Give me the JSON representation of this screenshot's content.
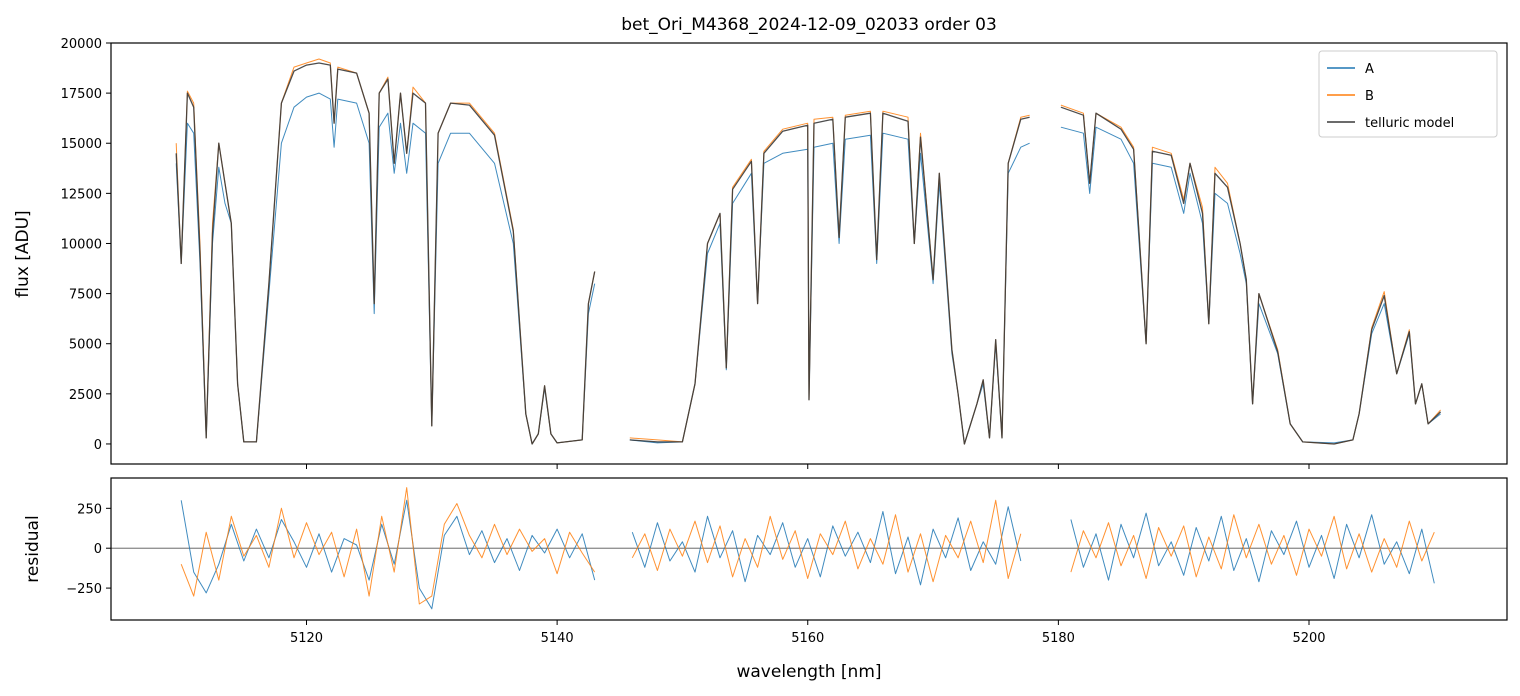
{
  "chart_data": [
    {
      "type": "line",
      "title": "bet_Ori_M4368_2024-12-09_02033  order 03",
      "ylabel": "flux [ADU]",
      "legend": "upper right",
      "ylim": [
        -1000,
        20000
      ],
      "yticks": [
        0,
        2500,
        5000,
        7500,
        10000,
        12500,
        15000,
        17500,
        20000
      ],
      "x": [
        5109.6,
        5110.0,
        5110.5,
        5111.0,
        5111.5,
        5112.0,
        5112.5,
        5113.0,
        5113.5,
        5114.0,
        5114.5,
        5115.0,
        5116.0,
        5117.0,
        5118.0,
        5119.0,
        5120.0,
        5121.0,
        5121.9,
        5122.2,
        5122.5,
        5124.0,
        5125.0,
        5125.4,
        5125.8,
        5126.5,
        5127.0,
        5127.5,
        5128.0,
        5128.5,
        5129.5,
        5130.0,
        5130.5,
        5131.5,
        5133.0,
        5135.0,
        5136.5,
        5137.5,
        5138.0,
        5138.5,
        5139.0,
        5139.5,
        5140.0,
        5142.0,
        5142.5,
        5143.0,
        5144.5,
        5145.8,
        5148.0,
        5150.0,
        5151.0,
        5152.0,
        5153.0,
        5153.5,
        5154.0,
        5155.5,
        5156.0,
        5156.5,
        5158.0,
        5160.0,
        5160.1,
        5160.5,
        5162.0,
        5162.5,
        5163.0,
        5165.0,
        5165.5,
        5166.0,
        5168.0,
        5168.5,
        5169.0,
        5170.0,
        5170.5,
        5171.5,
        5172.0,
        5172.5,
        5173.5,
        5174.0,
        5174.5,
        5175.0,
        5175.5,
        5176.0,
        5177.0,
        5177.7,
        5179.0,
        5180.2,
        5182.0,
        5182.5,
        5183.0,
        5185.0,
        5186.0,
        5187.0,
        5187.5,
        5189.0,
        5190.0,
        5190.5,
        5191.5,
        5192.0,
        5192.5,
        5193.5,
        5194.5,
        5195.0,
        5195.5,
        5196.0,
        5197.5,
        5198.5,
        5199.5,
        5202.0,
        5203.5,
        5204.0,
        5205.0,
        5206.0,
        5207.0,
        5208.0,
        5208.5,
        5209.0,
        5209.5,
        5210.5
      ],
      "series": [
        {
          "name": "A",
          "color": "#1f77b4",
          "values": [
            14000,
            9000,
            16000,
            15500,
            9000,
            300,
            10000,
            13800,
            12000,
            11000,
            3000,
            100,
            100,
            7500,
            15000,
            16800,
            17300,
            17500,
            17200,
            14800,
            17200,
            17000,
            15000,
            6500,
            15800,
            16500,
            13500,
            16000,
            13500,
            16000,
            15500,
            900,
            14000,
            15500,
            15500,
            14000,
            10000,
            1500,
            0,
            500,
            2800,
            500,
            50,
            200,
            6500,
            8000,
            null,
            200,
            50,
            100,
            3000,
            9500,
            11000,
            3700,
            12000,
            13500,
            7000,
            14000,
            14500,
            14700,
            2200,
            14800,
            15000,
            10000,
            15200,
            15400,
            9000,
            15500,
            15200,
            10000,
            14500,
            8000,
            13000,
            4500,
            2500,
            0,
            2000,
            3000,
            300,
            5000,
            300,
            13500,
            14800,
            15000,
            null,
            15800,
            15500,
            12500,
            15800,
            15200,
            14000,
            5000,
            14000,
            13800,
            11500,
            13500,
            11000,
            6000,
            12500,
            12000,
            9500,
            8000,
            2000,
            7000,
            4500,
            1000,
            100,
            50,
            200,
            1500,
            5500,
            7000,
            3500,
            5500,
            2000,
            3000,
            1000,
            1500
          ]
        },
        {
          "name": "B",
          "color": "#ff7f0e",
          "values": [
            15000,
            9000,
            17600,
            17000,
            10000,
            300,
            11000,
            15000,
            13000,
            11000,
            3000,
            100,
            100,
            8000,
            17000,
            18800,
            19000,
            19200,
            19000,
            16000,
            18800,
            18500,
            16500,
            7000,
            17500,
            18300,
            14000,
            17500,
            14500,
            17800,
            17000,
            900,
            15500,
            17000,
            17000,
            15500,
            10700,
            1500,
            0,
            500,
            2900,
            500,
            50,
            200,
            7000,
            8600,
            null,
            300,
            200,
            100,
            3000,
            10000,
            11500,
            3800,
            12800,
            14200,
            7000,
            14600,
            15700,
            16000,
            2200,
            16200,
            16300,
            10300,
            16400,
            16600,
            9200,
            16600,
            16300,
            10000,
            15500,
            8200,
            13500,
            4700,
            2500,
            0,
            2000,
            3200,
            300,
            5200,
            300,
            14000,
            16300,
            16400,
            null,
            16900,
            16500,
            13000,
            16500,
            15800,
            14800,
            5000,
            14800,
            14500,
            12200,
            14000,
            11800,
            6000,
            13800,
            13000,
            10000,
            8200,
            2000,
            7500,
            4700,
            1000,
            100,
            0,
            200,
            1500,
            5800,
            7600,
            3500,
            5700,
            2000,
            3000,
            1000,
            1700
          ]
        },
        {
          "name": "telluric model",
          "color": "#3a3a3a",
          "values": [
            14500,
            9000,
            17500,
            16800,
            9500,
            300,
            10500,
            15000,
            13000,
            11000,
            3000,
            100,
            100,
            8000,
            17000,
            18600,
            18900,
            19000,
            18900,
            16000,
            18700,
            18500,
            16500,
            7000,
            17500,
            18200,
            14000,
            17500,
            14500,
            17500,
            17000,
            900,
            15500,
            17000,
            16900,
            15400,
            10600,
            1500,
            0,
            500,
            2900,
            500,
            50,
            200,
            7000,
            8600,
            null,
            200,
            100,
            100,
            3000,
            10000,
            11500,
            3800,
            12700,
            14100,
            7000,
            14500,
            15600,
            15900,
            2200,
            16000,
            16200,
            10300,
            16300,
            16500,
            9200,
            16500,
            16100,
            10000,
            15300,
            8200,
            13500,
            4700,
            2500,
            0,
            2000,
            3200,
            300,
            5200,
            300,
            14000,
            16200,
            16300,
            null,
            16800,
            16400,
            13000,
            16500,
            15700,
            14700,
            5000,
            14600,
            14400,
            12000,
            14000,
            11500,
            6000,
            13500,
            12800,
            10000,
            8200,
            2000,
            7500,
            4600,
            1000,
            100,
            0,
            200,
            1500,
            5700,
            7400,
            3500,
            5600,
            2000,
            3000,
            1000,
            1600
          ]
        }
      ]
    },
    {
      "type": "line",
      "ylabel": "residual",
      "xlabel": "wavelength [nm]",
      "xlim": [
        5104.4,
        5215.8
      ],
      "xticks": [
        5120,
        5140,
        5160,
        5180,
        5200
      ],
      "ylim": [
        -450,
        440
      ],
      "yticks": [
        {
          "value": -250,
          "label": "−250"
        },
        0,
        250
      ],
      "hline": 0,
      "x": [
        5110,
        5111,
        5112,
        5113,
        5114,
        5115,
        5116,
        5117,
        5118,
        5119,
        5120,
        5121,
        5122,
        5123,
        5124,
        5125,
        5126,
        5127,
        5128,
        5129,
        5130,
        5131,
        5132,
        5133,
        5134,
        5135,
        5136,
        5137,
        5138,
        5139,
        5140,
        5141,
        5142,
        5143,
        5144.5,
        5146,
        5147,
        5148,
        5149,
        5150,
        5151,
        5152,
        5153,
        5154,
        5155,
        5156,
        5157,
        5158,
        5159,
        5160,
        5161,
        5162,
        5163,
        5164,
        5165,
        5166,
        5167,
        5168,
        5169,
        5170,
        5171,
        5172,
        5173,
        5174,
        5175,
        5176,
        5177,
        5179,
        5181,
        5182,
        5183,
        5184,
        5185,
        5186,
        5187,
        5188,
        5189,
        5190,
        5191,
        5192,
        5193,
        5194,
        5195,
        5196,
        5197,
        5198,
        5199,
        5200,
        5201,
        5202,
        5203,
        5204,
        5205,
        5206,
        5207,
        5208,
        5209,
        5210
      ],
      "series": [
        {
          "name": "A",
          "color": "#1f77b4",
          "values": [
            300,
            -150,
            -280,
            -100,
            150,
            -80,
            120,
            -60,
            180,
            40,
            -120,
            90,
            -150,
            60,
            20,
            -200,
            150,
            -100,
            300,
            -250,
            -380,
            80,
            200,
            -40,
            110,
            -90,
            60,
            -140,
            80,
            -30,
            120,
            -60,
            90,
            -200,
            null,
            100,
            -120,
            160,
            -80,
            40,
            -150,
            200,
            -60,
            110,
            -210,
            80,
            -40,
            160,
            -120,
            60,
            -180,
            140,
            -50,
            100,
            -90,
            230,
            -160,
            70,
            -230,
            120,
            -60,
            190,
            -140,
            40,
            -100,
            260,
            -80,
            null,
            180,
            -120,
            90,
            -200,
            150,
            -60,
            220,
            -110,
            40,
            -170,
            130,
            -80,
            200,
            -140,
            60,
            -210,
            110,
            -40,
            170,
            -120,
            80,
            -190,
            150,
            -60,
            210,
            -100,
            40,
            -160,
            120,
            -220
          ]
        },
        {
          "name": "B",
          "color": "#ff7f0e",
          "values": [
            -100,
            -300,
            100,
            -200,
            200,
            -50,
            80,
            -120,
            250,
            -60,
            160,
            -40,
            100,
            -180,
            120,
            -300,
            200,
            -150,
            380,
            -350,
            -300,
            150,
            280,
            80,
            -60,
            150,
            -40,
            120,
            -20,
            60,
            -160,
            100,
            -30,
            -150,
            null,
            -60,
            90,
            -140,
            120,
            -50,
            170,
            -90,
            140,
            -180,
            60,
            -120,
            200,
            -70,
            110,
            -190,
            90,
            -40,
            170,
            -130,
            60,
            -100,
            210,
            -150,
            90,
            -210,
            80,
            -60,
            170,
            -90,
            300,
            -190,
            90,
            null,
            -150,
            110,
            -60,
            160,
            -110,
            80,
            -190,
            130,
            -50,
            140,
            -180,
            70,
            -130,
            210,
            -60,
            150,
            -100,
            80,
            -170,
            120,
            -50,
            200,
            -130,
            90,
            -150,
            60,
            -120,
            170,
            -80,
            100
          ]
        }
      ]
    }
  ]
}
